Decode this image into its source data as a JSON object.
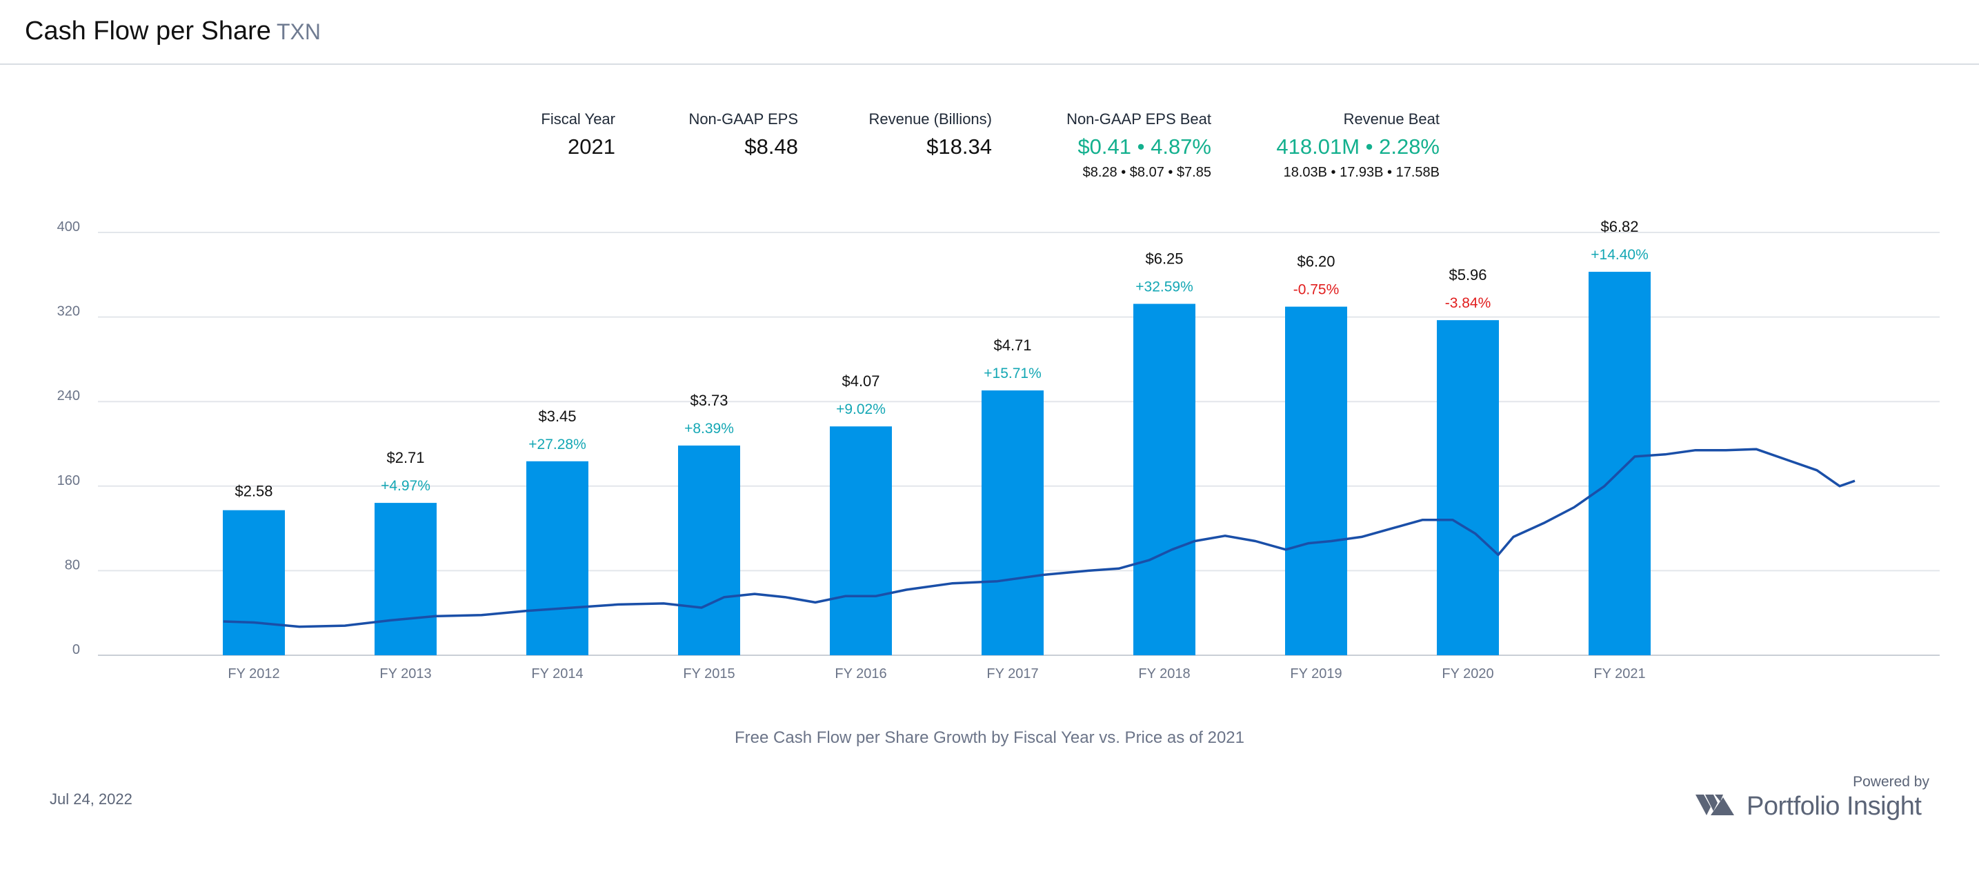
{
  "header": {
    "title": "Cash Flow per Share",
    "ticker": "TXN"
  },
  "stats": {
    "fiscal_year": {
      "label": "Fiscal Year",
      "value": "2021"
    },
    "eps": {
      "label": "Non-GAAP EPS",
      "value": "$8.48"
    },
    "revenue": {
      "label": "Revenue (Billions)",
      "value": "$18.34"
    },
    "eps_beat": {
      "label": "Non-GAAP EPS Beat",
      "value": "$0.41 • 4.87%",
      "sub": "$8.28 • $8.07 • $7.85"
    },
    "revenue_beat": {
      "label": "Revenue Beat",
      "value": "418.01M • 2.28%",
      "sub": "18.03B • 17.93B • 17.58B"
    }
  },
  "footer": {
    "caption": "Free Cash Flow per Share Growth by Fiscal Year vs. Price as of 2021",
    "date": "Jul 24, 2022",
    "powered_by": "Powered by",
    "brand": "Portfolio Insight"
  },
  "colors": {
    "bar": "#0094e8",
    "price_line": "#1a4fa8",
    "positive": "#14a7b4",
    "negative": "#e11d1d",
    "grid": "#e3e6eb",
    "axis_text": "#6b7488",
    "green": "#13b08e",
    "logo": "#5b6477"
  },
  "chart_data": {
    "type": "bar",
    "categories": [
      "FY 2012",
      "FY 2013",
      "FY 2014",
      "FY 2015",
      "FY 2016",
      "FY 2017",
      "FY 2018",
      "FY 2019",
      "FY 2020",
      "FY 2021"
    ],
    "values": [
      2.58,
      2.71,
      3.45,
      3.73,
      4.07,
      4.71,
      6.25,
      6.2,
      5.96,
      6.82
    ],
    "value_labels": [
      "$2.58",
      "$2.71",
      "$3.45",
      "$3.73",
      "$4.07",
      "$4.71",
      "$6.25",
      "$6.20",
      "$5.96",
      "$6.82"
    ],
    "growth_labels": [
      "",
      "+4.97%",
      "+27.28%",
      "+8.39%",
      "+9.02%",
      "+15.71%",
      "+32.59%",
      "-0.75%",
      "-3.84%",
      "+14.40%"
    ],
    "bar_axis_max": 7.52,
    "ylim": [
      0,
      400
    ],
    "yticks": [
      0,
      80,
      160,
      240,
      320,
      400
    ],
    "grid": true,
    "price_series": {
      "type": "line",
      "x": [
        2011.8,
        2012.0,
        2012.3,
        2012.6,
        2012.9,
        2013.2,
        2013.5,
        2013.8,
        2014.1,
        2014.4,
        2014.7,
        2014.95,
        2015.1,
        2015.3,
        2015.5,
        2015.7,
        2015.9,
        2016.1,
        2016.3,
        2016.6,
        2016.9,
        2017.2,
        2017.5,
        2017.7,
        2017.9,
        2018.05,
        2018.2,
        2018.4,
        2018.6,
        2018.8,
        2018.95,
        2019.1,
        2019.3,
        2019.5,
        2019.7,
        2019.9,
        2020.05,
        2020.2,
        2020.3,
        2020.5,
        2020.7,
        2020.9,
        2021.1,
        2021.3,
        2021.5,
        2021.7,
        2021.9,
        2022.1,
        2022.3,
        2022.45,
        2022.55
      ],
      "y": [
        32,
        31,
        27,
        28,
        33,
        37,
        38,
        42,
        45,
        48,
        49,
        45,
        55,
        58,
        55,
        50,
        56,
        56,
        62,
        68,
        70,
        76,
        80,
        82,
        90,
        100,
        108,
        113,
        108,
        100,
        106,
        108,
        112,
        120,
        128,
        128,
        115,
        95,
        112,
        125,
        140,
        160,
        188,
        190,
        194,
        194,
        195,
        185,
        175,
        160,
        165
      ]
    }
  }
}
